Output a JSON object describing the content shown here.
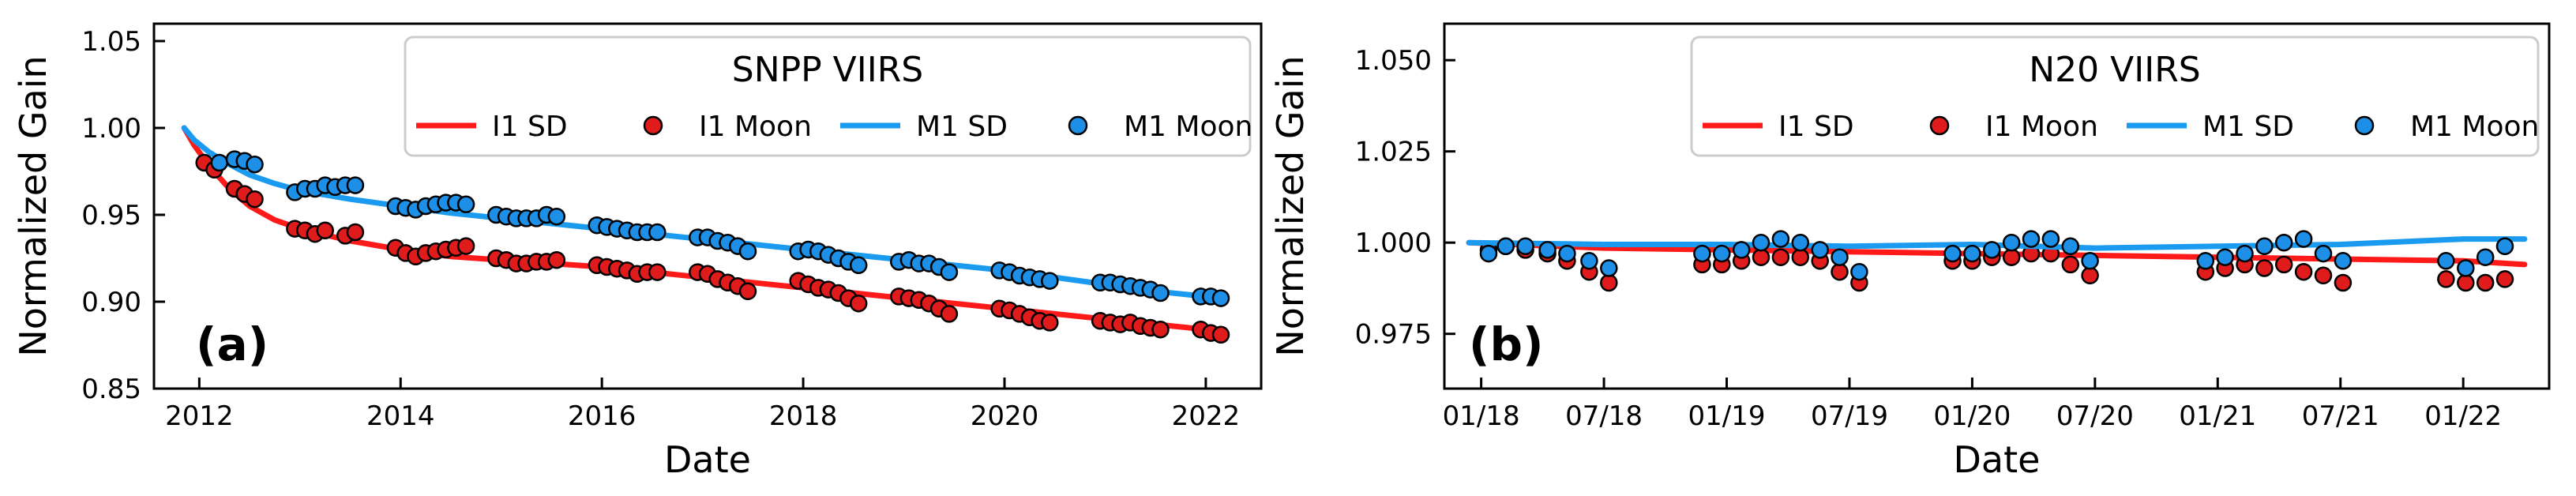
{
  "chart_data": [
    {
      "panel_label": "(a)",
      "type": "line+scatter",
      "title": "SNPP VIIRS",
      "xlabel": "Date",
      "ylabel": "Normalized Gain",
      "xlim": [
        2011.55,
        2022.55
      ],
      "ylim": [
        0.85,
        1.06
      ],
      "x_ticks": [
        2012,
        2014,
        2016,
        2018,
        2020,
        2022
      ],
      "x_tick_labels": [
        "2012",
        "2014",
        "2016",
        "2018",
        "2020",
        "2022"
      ],
      "y_ticks": [
        0.85,
        0.9,
        0.95,
        1.0,
        1.05
      ],
      "y_tick_labels": [
        "0.85",
        "0.90",
        "0.95",
        "1.00",
        "1.05"
      ],
      "legend_location": "upper right",
      "grid": false,
      "series": [
        {
          "name": "I1 SD",
          "kind": "line",
          "color": "#ff1a1a",
          "x": [
            2011.85,
            2011.95,
            2012.1,
            2012.3,
            2012.5,
            2012.75,
            2013.0,
            2013.5,
            2014.0,
            2014.5,
            2015.0,
            2015.5,
            2016.0,
            2016.5,
            2017.0,
            2017.5,
            2018.0,
            2018.5,
            2019.0,
            2019.5,
            2020.0,
            2020.5,
            2021.0,
            2021.5,
            2022.0,
            2022.2
          ],
          "y": [
            1.0,
            0.99,
            0.978,
            0.965,
            0.955,
            0.947,
            0.942,
            0.935,
            0.93,
            0.926,
            0.924,
            0.922,
            0.92,
            0.917,
            0.914,
            0.911,
            0.908,
            0.905,
            0.902,
            0.899,
            0.896,
            0.893,
            0.89,
            0.887,
            0.884,
            0.883
          ]
        },
        {
          "name": "I1 Moon",
          "kind": "scatter",
          "color": "#e01b1b",
          "x": [
            2012.05,
            2012.15,
            2012.35,
            2012.45,
            2012.55,
            2012.95,
            2013.05,
            2013.15,
            2013.25,
            2013.45,
            2013.55,
            2013.95,
            2014.05,
            2014.15,
            2014.25,
            2014.35,
            2014.45,
            2014.55,
            2014.65,
            2014.95,
            2015.05,
            2015.15,
            2015.25,
            2015.35,
            2015.45,
            2015.55,
            2015.95,
            2016.05,
            2016.15,
            2016.25,
            2016.35,
            2016.45,
            2016.55,
            2016.95,
            2017.05,
            2017.15,
            2017.25,
            2017.35,
            2017.45,
            2017.95,
            2018.05,
            2018.15,
            2018.25,
            2018.35,
            2018.45,
            2018.55,
            2018.95,
            2019.05,
            2019.15,
            2019.25,
            2019.35,
            2019.45,
            2019.95,
            2020.05,
            2020.15,
            2020.25,
            2020.35,
            2020.45,
            2020.95,
            2021.05,
            2021.15,
            2021.25,
            2021.35,
            2021.45,
            2021.55,
            2021.95,
            2022.05,
            2022.15
          ],
          "y": [
            0.98,
            0.976,
            0.965,
            0.962,
            0.959,
            0.942,
            0.941,
            0.939,
            0.941,
            0.938,
            0.94,
            0.931,
            0.928,
            0.926,
            0.928,
            0.929,
            0.93,
            0.931,
            0.932,
            0.925,
            0.924,
            0.922,
            0.922,
            0.923,
            0.923,
            0.924,
            0.921,
            0.92,
            0.919,
            0.918,
            0.916,
            0.917,
            0.917,
            0.917,
            0.916,
            0.913,
            0.911,
            0.909,
            0.906,
            0.912,
            0.91,
            0.908,
            0.907,
            0.905,
            0.902,
            0.899,
            0.903,
            0.902,
            0.901,
            0.899,
            0.896,
            0.893,
            0.896,
            0.895,
            0.893,
            0.891,
            0.889,
            0.888,
            0.889,
            0.888,
            0.887,
            0.888,
            0.886,
            0.885,
            0.884,
            0.884,
            0.882,
            0.881
          ]
        },
        {
          "name": "M1 SD",
          "kind": "line",
          "color": "#1a9bf0",
          "x": [
            2011.85,
            2011.95,
            2012.1,
            2012.3,
            2012.5,
            2012.75,
            2013.0,
            2013.5,
            2014.0,
            2014.5,
            2015.0,
            2015.5,
            2016.0,
            2016.5,
            2017.0,
            2017.5,
            2018.0,
            2018.5,
            2019.0,
            2019.5,
            2020.0,
            2020.5,
            2021.0,
            2021.5,
            2022.0,
            2022.2
          ],
          "y": [
            1.0,
            0.993,
            0.986,
            0.979,
            0.973,
            0.968,
            0.964,
            0.959,
            0.955,
            0.951,
            0.948,
            0.945,
            0.942,
            0.939,
            0.936,
            0.933,
            0.93,
            0.927,
            0.924,
            0.921,
            0.918,
            0.914,
            0.91,
            0.906,
            0.903,
            0.902
          ]
        },
        {
          "name": "M1 Moon",
          "kind": "scatter",
          "color": "#1e8fe6",
          "x": [
            2012.2,
            2012.35,
            2012.45,
            2012.55,
            2012.95,
            2013.05,
            2013.15,
            2013.25,
            2013.35,
            2013.45,
            2013.55,
            2013.95,
            2014.05,
            2014.15,
            2014.25,
            2014.35,
            2014.45,
            2014.55,
            2014.65,
            2014.95,
            2015.05,
            2015.15,
            2015.25,
            2015.35,
            2015.45,
            2015.55,
            2015.95,
            2016.05,
            2016.15,
            2016.25,
            2016.35,
            2016.45,
            2016.55,
            2016.95,
            2017.05,
            2017.15,
            2017.25,
            2017.35,
            2017.45,
            2017.95,
            2018.05,
            2018.15,
            2018.25,
            2018.35,
            2018.45,
            2018.55,
            2018.95,
            2019.05,
            2019.15,
            2019.25,
            2019.35,
            2019.45,
            2019.95,
            2020.05,
            2020.15,
            2020.25,
            2020.35,
            2020.45,
            2020.95,
            2021.05,
            2021.15,
            2021.25,
            2021.35,
            2021.45,
            2021.55,
            2021.95,
            2022.05,
            2022.15
          ],
          "y": [
            0.98,
            0.982,
            0.981,
            0.979,
            0.963,
            0.965,
            0.965,
            0.967,
            0.966,
            0.967,
            0.967,
            0.955,
            0.954,
            0.953,
            0.955,
            0.956,
            0.957,
            0.957,
            0.956,
            0.95,
            0.949,
            0.948,
            0.948,
            0.948,
            0.95,
            0.949,
            0.944,
            0.943,
            0.942,
            0.941,
            0.94,
            0.94,
            0.94,
            0.937,
            0.937,
            0.935,
            0.934,
            0.932,
            0.929,
            0.929,
            0.93,
            0.929,
            0.927,
            0.925,
            0.923,
            0.921,
            0.923,
            0.924,
            0.922,
            0.922,
            0.92,
            0.917,
            0.918,
            0.917,
            0.915,
            0.914,
            0.913,
            0.912,
            0.911,
            0.911,
            0.91,
            0.909,
            0.908,
            0.907,
            0.905,
            0.903,
            0.903,
            0.902
          ]
        }
      ]
    },
    {
      "panel_label": "(b)",
      "type": "line+scatter",
      "title": "N20 VIIRS",
      "xlabel": "Date",
      "ylabel": "Normalized Gain",
      "xlim": [
        2017.85,
        2022.35
      ],
      "ylim": [
        0.96,
        1.06
      ],
      "x_ticks": [
        2018.0,
        2018.5,
        2019.0,
        2019.5,
        2020.0,
        2020.5,
        2021.0,
        2021.5,
        2022.0
      ],
      "x_tick_labels": [
        "01/18",
        "07/18",
        "01/19",
        "07/19",
        "01/20",
        "07/20",
        "01/21",
        "07/21",
        "01/22"
      ],
      "y_ticks": [
        0.975,
        1.0,
        1.025,
        1.05
      ],
      "y_tick_labels": [
        "0.975",
        "1.000",
        "1.025",
        "1.050"
      ],
      "legend_location": "upper right",
      "grid": false,
      "series": [
        {
          "name": "I1 SD",
          "kind": "line",
          "color": "#ff1a1a",
          "x": [
            2017.95,
            2018.5,
            2019.0,
            2019.5,
            2020.0,
            2020.5,
            2021.0,
            2021.5,
            2022.0,
            2022.25
          ],
          "y": [
            1.0,
            0.9985,
            0.998,
            0.9975,
            0.997,
            0.9965,
            0.996,
            0.9955,
            0.995,
            0.994
          ]
        },
        {
          "name": "I1 Moon",
          "kind": "scatter",
          "color": "#e01b1b",
          "x": [
            2018.03,
            2018.1,
            2018.18,
            2018.27,
            2018.35,
            2018.44,
            2018.52,
            2018.9,
            2018.98,
            2019.06,
            2019.14,
            2019.22,
            2019.3,
            2019.38,
            2019.46,
            2019.54,
            2019.92,
            2020.0,
            2020.08,
            2020.16,
            2020.24,
            2020.32,
            2020.4,
            2020.48,
            2020.95,
            2021.03,
            2021.11,
            2021.19,
            2021.27,
            2021.35,
            2021.43,
            2021.51,
            2021.93,
            2022.01,
            2022.09,
            2022.17
          ],
          "y": [
            0.998,
            0.999,
            0.998,
            0.997,
            0.995,
            0.992,
            0.989,
            0.994,
            0.994,
            0.995,
            0.996,
            0.996,
            0.996,
            0.995,
            0.992,
            0.989,
            0.995,
            0.995,
            0.996,
            0.996,
            0.997,
            0.997,
            0.994,
            0.991,
            0.992,
            0.993,
            0.994,
            0.993,
            0.994,
            0.992,
            0.991,
            0.989,
            0.99,
            0.989,
            0.989,
            0.99
          ]
        },
        {
          "name": "M1 SD",
          "kind": "line",
          "color": "#1a9bf0",
          "x": [
            2017.95,
            2018.5,
            2019.0,
            2019.5,
            2020.0,
            2020.5,
            2021.0,
            2021.5,
            2022.0,
            2022.25
          ],
          "y": [
            1.0,
            0.9995,
            0.9995,
            0.999,
            0.9995,
            0.9985,
            0.999,
            0.9995,
            1.001,
            1.001
          ]
        },
        {
          "name": "M1 Moon",
          "kind": "scatter",
          "color": "#1e8fe6",
          "x": [
            2018.03,
            2018.1,
            2018.18,
            2018.27,
            2018.35,
            2018.44,
            2018.52,
            2018.9,
            2018.98,
            2019.06,
            2019.14,
            2019.22,
            2019.3,
            2019.38,
            2019.46,
            2019.54,
            2019.92,
            2020.0,
            2020.08,
            2020.16,
            2020.24,
            2020.32,
            2020.4,
            2020.48,
            2020.95,
            2021.03,
            2021.11,
            2021.19,
            2021.27,
            2021.35,
            2021.43,
            2021.51,
            2021.93,
            2022.01,
            2022.09,
            2022.17
          ],
          "y": [
            0.997,
            0.999,
            0.999,
            0.998,
            0.997,
            0.995,
            0.993,
            0.997,
            0.997,
            0.998,
            1.0,
            1.001,
            1.0,
            0.998,
            0.996,
            0.992,
            0.997,
            0.997,
            0.998,
            1.0,
            1.001,
            1.001,
            0.999,
            0.995,
            0.995,
            0.996,
            0.997,
            0.999,
            1.0,
            1.001,
            0.997,
            0.995,
            0.995,
            0.993,
            0.996,
            0.999
          ]
        }
      ]
    }
  ]
}
